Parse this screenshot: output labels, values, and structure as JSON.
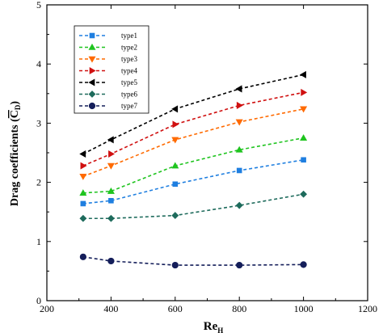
{
  "chart_data": {
    "type": "line",
    "xlabel_main": "Re",
    "xlabel_sub": "H",
    "ylabel_main": "Drag coefficients (",
    "ylabel_bar": "C",
    "ylabel_sub": "D",
    "ylabel_close": ")",
    "xlim": [
      200,
      1200
    ],
    "ylim": [
      0,
      5
    ],
    "x_ticks": [
      "200",
      "400",
      "600",
      "800",
      "1000",
      "1200"
    ],
    "y_ticks": [
      "0",
      "1",
      "2",
      "3",
      "4",
      "5"
    ],
    "legend_position": "top-left",
    "grid": false,
    "x": [
      313,
      400,
      600,
      800,
      1000
    ],
    "series": [
      {
        "name": "type1",
        "color": "#1f7fe0",
        "marker": "square",
        "values": [
          1.64,
          1.69,
          1.97,
          2.2,
          2.38
        ]
      },
      {
        "name": "type2",
        "color": "#1fc41f",
        "marker": "triangle-up",
        "values": [
          1.82,
          1.85,
          2.28,
          2.55,
          2.75
        ]
      },
      {
        "name": "type3",
        "color": "#ff6a00",
        "marker": "triangle-down",
        "values": [
          2.1,
          2.28,
          2.72,
          3.02,
          3.24
        ]
      },
      {
        "name": "type4",
        "color": "#d01010",
        "marker": "triangle-right",
        "values": [
          2.28,
          2.48,
          2.98,
          3.3,
          3.52
        ]
      },
      {
        "name": "type5",
        "color": "#000000",
        "marker": "triangle-left",
        "values": [
          2.48,
          2.72,
          3.24,
          3.58,
          3.82
        ]
      },
      {
        "name": "type6",
        "color": "#1e6b5c",
        "marker": "diamond",
        "values": [
          1.39,
          1.39,
          1.44,
          1.61,
          1.8
        ]
      },
      {
        "name": "type7",
        "color": "#141e5a",
        "marker": "circle",
        "values": [
          0.74,
          0.67,
          0.6,
          0.6,
          0.61
        ]
      }
    ]
  }
}
